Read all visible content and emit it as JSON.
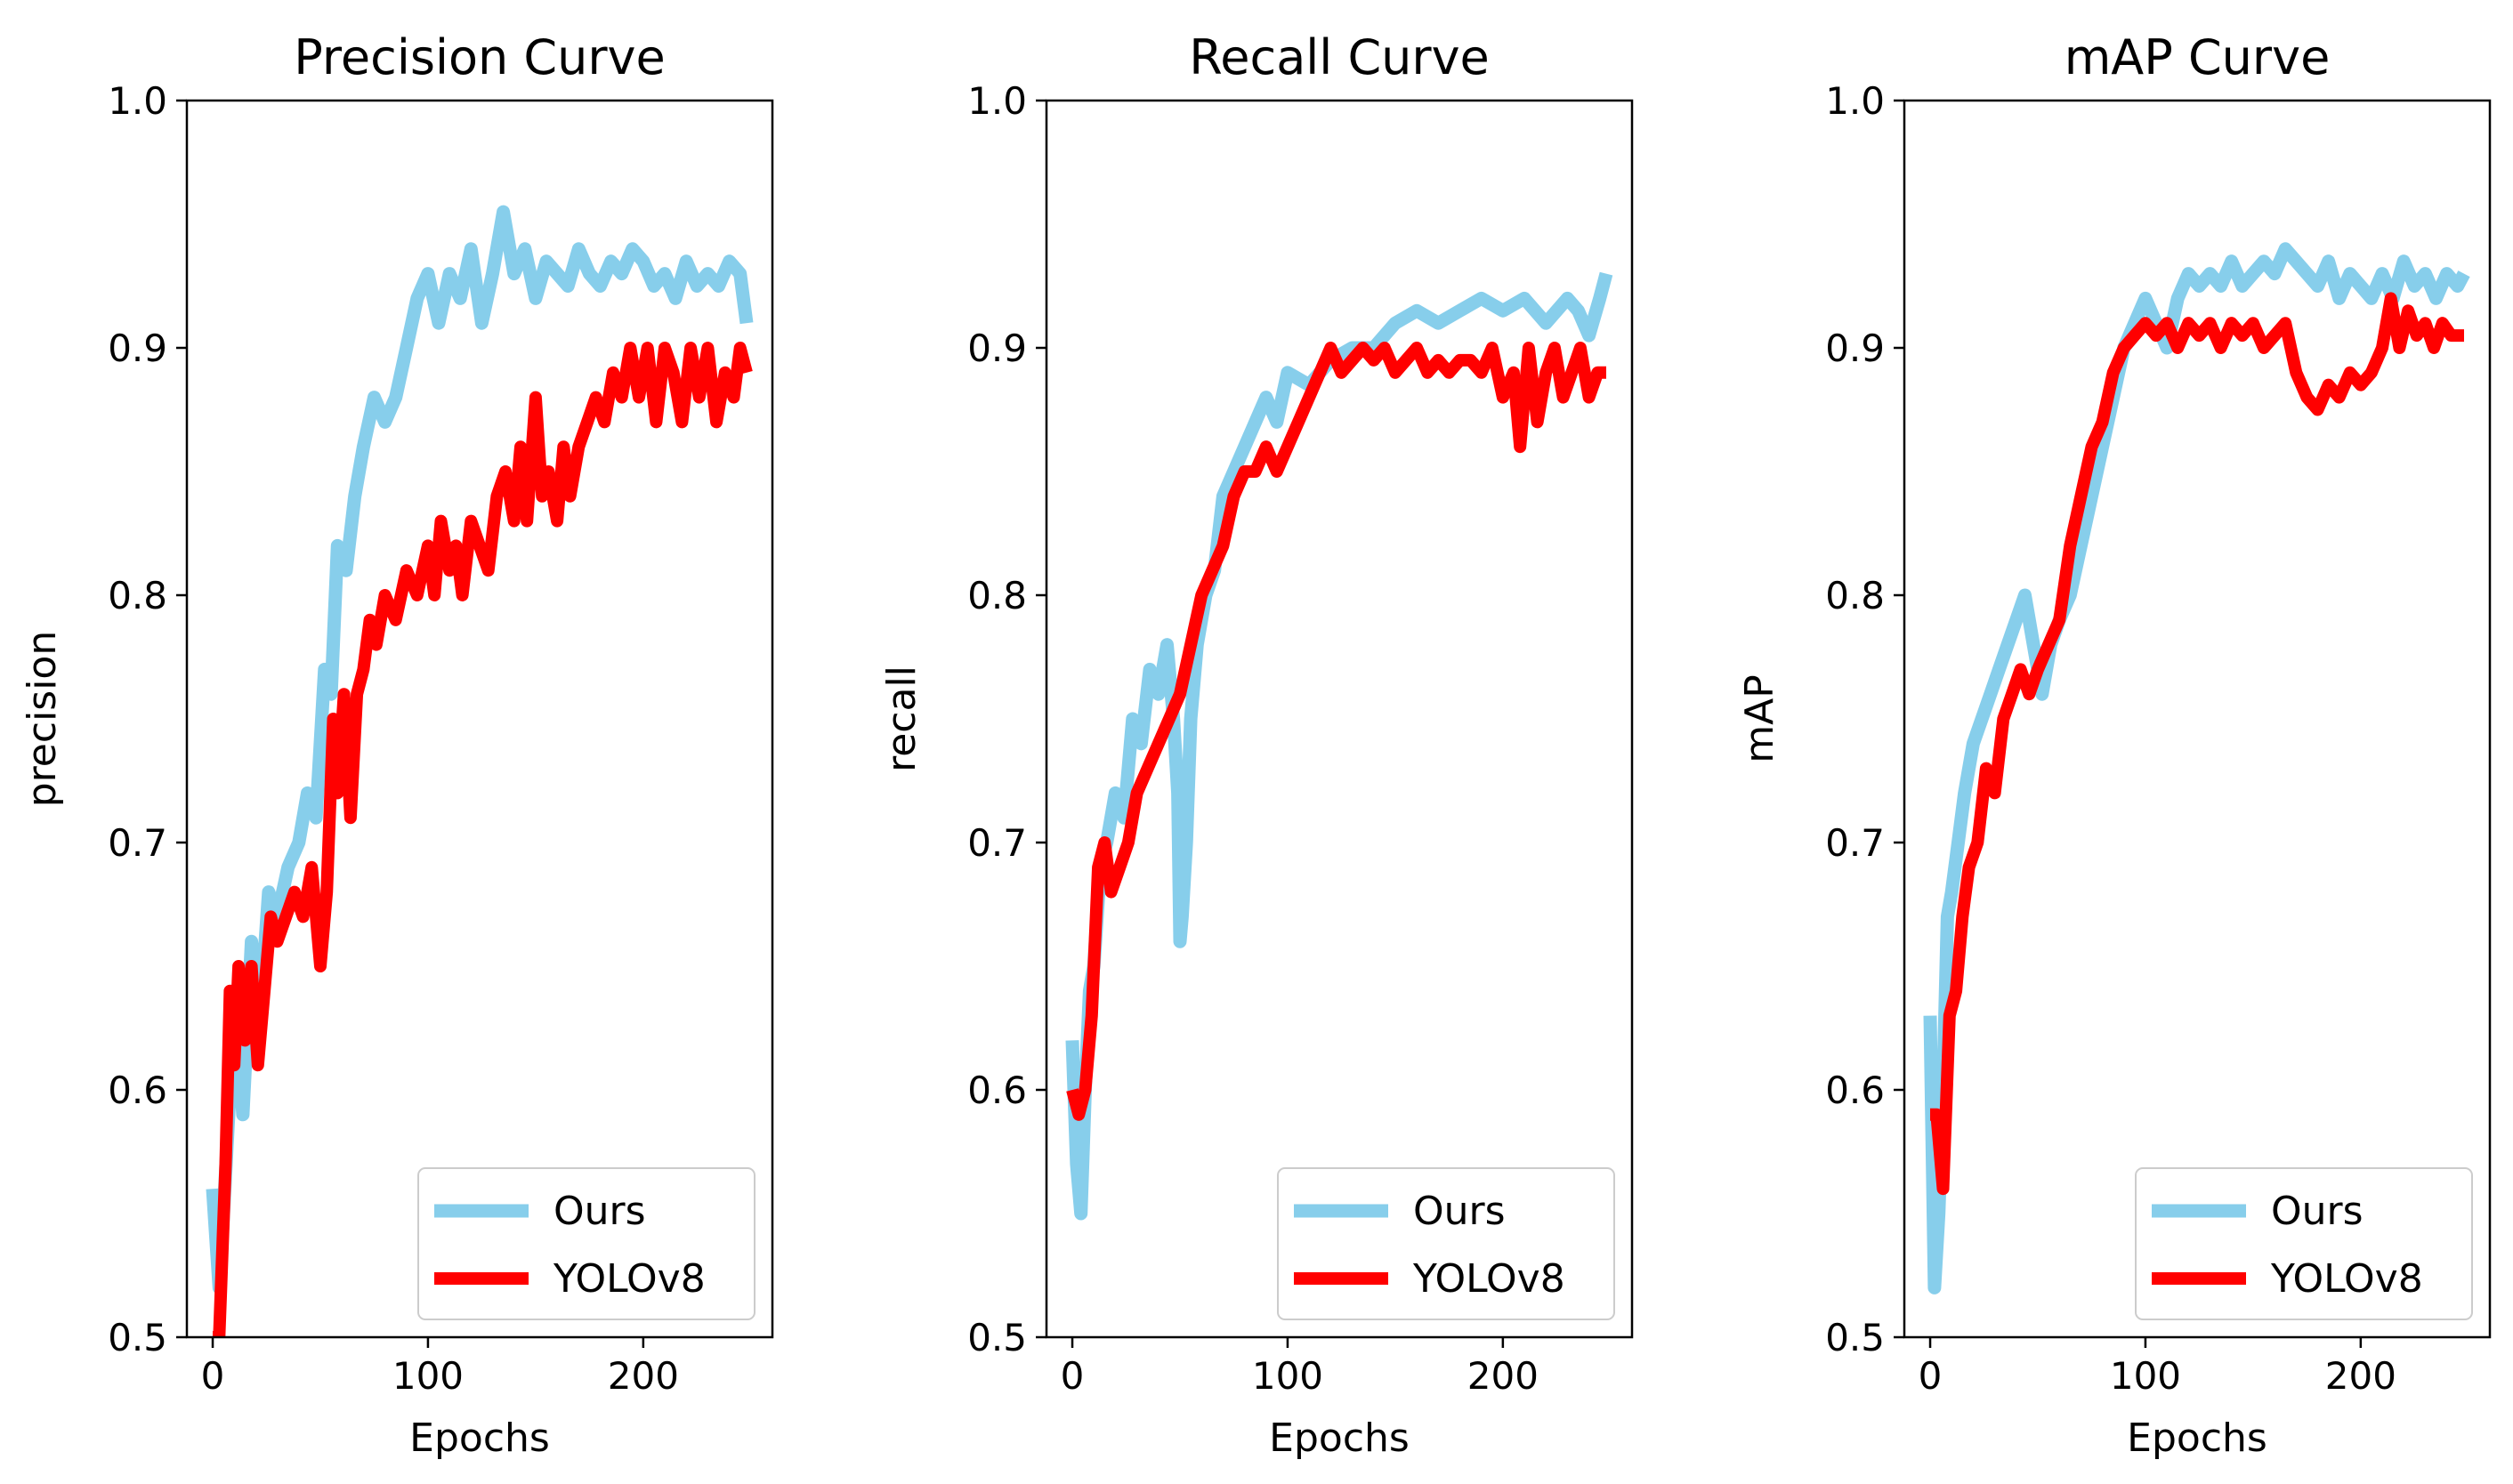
{
  "figure": {
    "colors": {
      "ours": "#87ceeb",
      "yolov8": "#ff0000"
    }
  },
  "chart_data": [
    {
      "type": "line",
      "title": "Precision Curve",
      "xlabel": "Epochs",
      "ylabel": "precision",
      "xlim": [
        -12,
        260
      ],
      "ylim": [
        0.5,
        1.0
      ],
      "xticks": [
        0,
        100,
        200
      ],
      "xtick_labels": [
        "0",
        "100",
        "200"
      ],
      "yticks": [
        0.5,
        0.6,
        0.7,
        0.8,
        0.9,
        1.0
      ],
      "ytick_labels": [
        "0.5",
        "0.6",
        "0.7",
        "0.8",
        "0.9",
        "1.0"
      ],
      "legend": {
        "position": "lower-right",
        "entries": [
          "Ours",
          "YOLOv8"
        ]
      },
      "series": [
        {
          "name": "Ours",
          "color": "#87ceeb",
          "x": [
            0,
            3,
            5,
            8,
            11,
            14,
            18,
            22,
            26,
            30,
            35,
            40,
            44,
            48,
            52,
            55,
            58,
            62,
            66,
            70,
            75,
            80,
            85,
            90,
            95,
            100,
            105,
            110,
            115,
            120,
            125,
            130,
            135,
            140,
            145,
            150,
            155,
            160,
            165,
            170,
            175,
            180,
            185,
            190,
            195,
            200,
            205,
            210,
            215,
            220,
            225,
            230,
            235,
            240,
            245,
            248
          ],
          "y": [
            0.56,
            0.52,
            0.55,
            0.6,
            0.63,
            0.59,
            0.66,
            0.63,
            0.68,
            0.67,
            0.69,
            0.7,
            0.72,
            0.71,
            0.77,
            0.76,
            0.82,
            0.81,
            0.84,
            0.86,
            0.88,
            0.87,
            0.88,
            0.9,
            0.92,
            0.93,
            0.91,
            0.93,
            0.92,
            0.94,
            0.91,
            0.93,
            0.955,
            0.93,
            0.94,
            0.92,
            0.935,
            0.93,
            0.925,
            0.94,
            0.93,
            0.925,
            0.935,
            0.93,
            0.94,
            0.935,
            0.925,
            0.93,
            0.92,
            0.935,
            0.925,
            0.93,
            0.925,
            0.935,
            0.93,
            0.91
          ]
        },
        {
          "name": "YOLOv8",
          "color": "#ff0000",
          "x": [
            0,
            3,
            6,
            8,
            10,
            12,
            15,
            18,
            21,
            24,
            27,
            30,
            34,
            38,
            42,
            46,
            50,
            53,
            56,
            58,
            61,
            64,
            67,
            70,
            73,
            76,
            80,
            85,
            90,
            95,
            100,
            103,
            106,
            110,
            113,
            116,
            120,
            124,
            128,
            132,
            136,
            140,
            143,
            146,
            150,
            153,
            156,
            160,
            163,
            166,
            170,
            174,
            178,
            182,
            186,
            190,
            194,
            198,
            202,
            206,
            210,
            214,
            218,
            222,
            226,
            230,
            234,
            238,
            242,
            245,
            248
          ],
          "y": [
            0.5,
            0.5,
            0.57,
            0.64,
            0.61,
            0.65,
            0.62,
            0.65,
            0.61,
            0.64,
            0.67,
            0.66,
            0.67,
            0.68,
            0.67,
            0.69,
            0.65,
            0.68,
            0.75,
            0.72,
            0.76,
            0.71,
            0.76,
            0.77,
            0.79,
            0.78,
            0.8,
            0.79,
            0.81,
            0.8,
            0.82,
            0.8,
            0.83,
            0.81,
            0.82,
            0.8,
            0.83,
            0.82,
            0.81,
            0.84,
            0.85,
            0.83,
            0.86,
            0.83,
            0.88,
            0.84,
            0.85,
            0.83,
            0.86,
            0.84,
            0.86,
            0.87,
            0.88,
            0.87,
            0.89,
            0.88,
            0.9,
            0.88,
            0.9,
            0.87,
            0.9,
            0.89,
            0.87,
            0.9,
            0.88,
            0.9,
            0.87,
            0.89,
            0.88,
            0.9,
            0.89
          ]
        }
      ]
    },
    {
      "type": "line",
      "title": "Recall Curve",
      "xlabel": "Epochs",
      "ylabel": "recall",
      "xlim": [
        -12,
        260
      ],
      "ylim": [
        0.5,
        1.0
      ],
      "xticks": [
        0,
        100,
        200
      ],
      "xtick_labels": [
        "0",
        "100",
        "200"
      ],
      "yticks": [
        0.5,
        0.6,
        0.7,
        0.8,
        0.9,
        1.0
      ],
      "ytick_labels": [
        "0.5",
        "0.6",
        "0.7",
        "0.8",
        "0.9",
        "1.0"
      ],
      "legend": {
        "position": "lower-right",
        "entries": [
          "Ours",
          "YOLOv8"
        ]
      },
      "series": [
        {
          "name": "Ours",
          "color": "#87ceeb",
          "x": [
            0,
            2,
            4,
            6,
            8,
            10,
            13,
            16,
            20,
            24,
            28,
            32,
            36,
            40,
            44,
            47,
            49,
            50,
            51,
            53,
            55,
            58,
            62,
            66,
            70,
            75,
            80,
            85,
            90,
            95,
            100,
            110,
            120,
            130,
            140,
            150,
            160,
            170,
            180,
            190,
            200,
            210,
            220,
            230,
            235,
            240,
            245,
            248
          ],
          "y": [
            0.62,
            0.57,
            0.55,
            0.6,
            0.64,
            0.65,
            0.69,
            0.7,
            0.72,
            0.71,
            0.75,
            0.74,
            0.77,
            0.76,
            0.78,
            0.75,
            0.72,
            0.66,
            0.67,
            0.7,
            0.75,
            0.78,
            0.8,
            0.81,
            0.84,
            0.85,
            0.86,
            0.87,
            0.88,
            0.87,
            0.89,
            0.885,
            0.895,
            0.9,
            0.9,
            0.91,
            0.915,
            0.91,
            0.915,
            0.92,
            0.915,
            0.92,
            0.91,
            0.92,
            0.915,
            0.905,
            0.92,
            0.93
          ]
        },
        {
          "name": "YOLOv8",
          "color": "#ff0000",
          "x": [
            0,
            3,
            6,
            9,
            12,
            15,
            18,
            22,
            26,
            30,
            35,
            40,
            45,
            50,
            55,
            60,
            65,
            70,
            75,
            80,
            85,
            90,
            95,
            100,
            105,
            110,
            115,
            120,
            125,
            130,
            135,
            140,
            145,
            150,
            155,
            160,
            165,
            170,
            175,
            180,
            185,
            190,
            195,
            200,
            205,
            208,
            212,
            216,
            220,
            224,
            228,
            232,
            236,
            240,
            244,
            248
          ],
          "y": [
            0.6,
            0.59,
            0.6,
            0.63,
            0.69,
            0.7,
            0.68,
            0.69,
            0.7,
            0.72,
            0.73,
            0.74,
            0.75,
            0.76,
            0.78,
            0.8,
            0.81,
            0.82,
            0.84,
            0.85,
            0.85,
            0.86,
            0.85,
            0.86,
            0.87,
            0.88,
            0.89,
            0.9,
            0.89,
            0.895,
            0.9,
            0.895,
            0.9,
            0.89,
            0.895,
            0.9,
            0.89,
            0.895,
            0.89,
            0.895,
            0.895,
            0.89,
            0.9,
            0.88,
            0.89,
            0.86,
            0.9,
            0.87,
            0.89,
            0.9,
            0.88,
            0.89,
            0.9,
            0.88,
            0.89,
            0.89
          ]
        }
      ]
    },
    {
      "type": "line",
      "title": "mAP Curve",
      "xlabel": "Epochs",
      "ylabel": "mAP",
      "xlim": [
        -12,
        260
      ],
      "ylim": [
        0.5,
        1.0
      ],
      "xticks": [
        0,
        100,
        200
      ],
      "xtick_labels": [
        "0",
        "100",
        "200"
      ],
      "yticks": [
        0.5,
        0.6,
        0.7,
        0.8,
        0.9,
        1.0
      ],
      "ytick_labels": [
        "0.5",
        "0.6",
        "0.7",
        "0.8",
        "0.9",
        "1.0"
      ],
      "legend": {
        "position": "lower-right",
        "entries": [
          "Ours",
          "YOLOv8"
        ]
      },
      "series": [
        {
          "name": "Ours",
          "color": "#87ceeb",
          "x": [
            0,
            2,
            4,
            6,
            8,
            10,
            13,
            16,
            20,
            24,
            28,
            32,
            36,
            40,
            44,
            48,
            52,
            56,
            60,
            65,
            70,
            75,
            80,
            85,
            90,
            95,
            100,
            105,
            110,
            115,
            120,
            125,
            130,
            135,
            140,
            145,
            150,
            155,
            160,
            165,
            170,
            175,
            180,
            185,
            190,
            195,
            200,
            205,
            210,
            215,
            220,
            225,
            230,
            235,
            240,
            245,
            248
          ],
          "y": [
            0.63,
            0.52,
            0.55,
            0.6,
            0.67,
            0.68,
            0.7,
            0.72,
            0.74,
            0.75,
            0.76,
            0.77,
            0.78,
            0.79,
            0.8,
            0.78,
            0.76,
            0.78,
            0.79,
            0.8,
            0.82,
            0.84,
            0.86,
            0.88,
            0.9,
            0.91,
            0.92,
            0.91,
            0.9,
            0.92,
            0.93,
            0.925,
            0.93,
            0.925,
            0.935,
            0.925,
            0.93,
            0.935,
            0.93,
            0.94,
            0.935,
            0.93,
            0.925,
            0.935,
            0.92,
            0.93,
            0.925,
            0.92,
            0.93,
            0.92,
            0.935,
            0.925,
            0.93,
            0.92,
            0.93,
            0.925,
            0.93
          ]
        },
        {
          "name": "YOLOv8",
          "color": "#ff0000",
          "x": [
            0,
            3,
            6,
            9,
            12,
            15,
            18,
            22,
            26,
            30,
            34,
            38,
            42,
            46,
            50,
            55,
            60,
            65,
            70,
            75,
            80,
            85,
            90,
            95,
            100,
            105,
            110,
            115,
            120,
            125,
            130,
            135,
            140,
            145,
            150,
            155,
            160,
            165,
            170,
            175,
            180,
            185,
            190,
            195,
            200,
            205,
            210,
            214,
            218,
            222,
            226,
            230,
            234,
            238,
            242,
            245,
            248
          ],
          "y": [
            0.59,
            0.59,
            0.56,
            0.63,
            0.64,
            0.67,
            0.69,
            0.7,
            0.73,
            0.72,
            0.75,
            0.76,
            0.77,
            0.76,
            0.77,
            0.78,
            0.79,
            0.82,
            0.84,
            0.86,
            0.87,
            0.89,
            0.9,
            0.905,
            0.91,
            0.905,
            0.91,
            0.9,
            0.91,
            0.905,
            0.91,
            0.9,
            0.91,
            0.905,
            0.91,
            0.9,
            0.905,
            0.91,
            0.89,
            0.88,
            0.875,
            0.885,
            0.88,
            0.89,
            0.885,
            0.89,
            0.9,
            0.92,
            0.9,
            0.915,
            0.905,
            0.91,
            0.9,
            0.91,
            0.905,
            0.905,
            0.905
          ]
        }
      ]
    }
  ]
}
